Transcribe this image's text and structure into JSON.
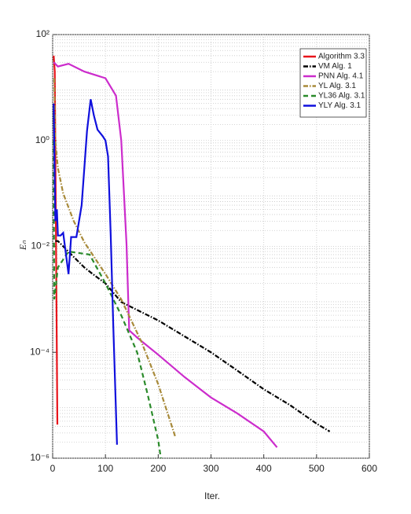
{
  "chart_data": {
    "type": "line",
    "xlabel": "Iter.",
    "ylabel": "Eₙ",
    "xlim": [
      0,
      600
    ],
    "xticks": [
      0,
      100,
      200,
      300,
      400,
      500,
      600
    ],
    "ylim": [
      1e-06,
      100
    ],
    "yticks": [
      {
        "value": 1e-06,
        "label": "10⁻⁶"
      },
      {
        "value": 0.0001,
        "label": "10⁻⁴"
      },
      {
        "value": 0.01,
        "label": "10⁻²"
      },
      {
        "value": 1,
        "label": "10⁰"
      },
      {
        "value": 100,
        "label": "10²"
      }
    ],
    "yscale": "log",
    "grid": true,
    "legend": "northeast",
    "series": [
      {
        "name": "Algorithm 3.3",
        "color": "#e8141b",
        "linestyle": "solid",
        "x": [
          2,
          4,
          9
        ],
        "values": [
          40,
          20,
          4.3e-06
        ]
      },
      {
        "name": "VM Alg. 1",
        "color": "#000000",
        "linestyle": "dashdot",
        "x": [
          5,
          10,
          20,
          40,
          60,
          80,
          100,
          130,
          160,
          200,
          250,
          300,
          350,
          400,
          450,
          500,
          525
        ],
        "values": [
          0.0126,
          0.0126,
          0.01,
          0.0063,
          0.004,
          0.0028,
          0.002,
          0.00089,
          0.00063,
          0.0004,
          0.0002,
          0.0001,
          4.5e-05,
          2e-05,
          1e-05,
          4.5e-06,
          3.2e-06
        ]
      },
      {
        "name": "PNN Alg. 4.1",
        "color": "#cc2ccc",
        "linestyle": "solid",
        "x": [
          2,
          10,
          30,
          60,
          100,
          120,
          130,
          140,
          145,
          160,
          200,
          250,
          300,
          350,
          400,
          425
        ],
        "values": [
          30,
          25,
          28,
          20,
          15,
          7,
          1,
          0.011,
          0.00026,
          0.00019,
          9e-05,
          3.4e-05,
          1.4e-05,
          7e-06,
          3.2e-06,
          1.6e-06
        ]
      },
      {
        "name": "YL Alg. 3.1",
        "color": "#a88a3a",
        "linestyle": "dashdot",
        "x": [
          3,
          5,
          10,
          20,
          40,
          60,
          80,
          100,
          130,
          168,
          200,
          232
        ],
        "values": [
          15,
          1,
          0.3,
          0.1,
          0.03,
          0.012,
          0.006,
          0.003,
          0.001,
          0.00016,
          2.5e-05,
          2.6e-06
        ]
      },
      {
        "name": "YL36 Alg. 3.1",
        "color": "#2a8a2a",
        "linestyle": "dashed",
        "x": [
          2,
          3,
          10,
          30,
          70,
          100,
          130,
          160,
          180,
          200,
          205
        ],
        "values": [
          1,
          0.001,
          0.004,
          0.008,
          0.007,
          0.002,
          0.0005,
          0.0001,
          1.6e-05,
          2.2e-06,
          1e-06
        ]
      },
      {
        "name": "YLY Alg. 3.1",
        "color": "#1010dd",
        "linestyle": "solid",
        "x": [
          2,
          5,
          8,
          10,
          15,
          20,
          30,
          35,
          45,
          55,
          65,
          72,
          78,
          85,
          95,
          100,
          105,
          110,
          115,
          122
        ],
        "values": [
          5,
          0.03,
          0.05,
          0.016,
          0.016,
          0.018,
          0.003,
          0.015,
          0.015,
          0.06,
          1.5,
          6,
          3,
          1.6,
          1.2,
          1,
          0.5,
          0.016,
          0.0003,
          1.8e-06
        ]
      }
    ]
  }
}
